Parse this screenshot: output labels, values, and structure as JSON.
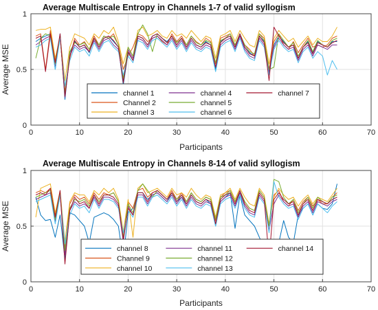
{
  "chart_data": [
    {
      "type": "line",
      "title": "Average Multiscale Entropy in Channels 1-7 of valid  syllogism",
      "xlabel": "Participants",
      "ylabel": "Average MSE",
      "xlim": [
        0,
        70
      ],
      "ylim": [
        0,
        1
      ],
      "xticks": [
        "0",
        "10",
        "20",
        "30",
        "40",
        "50",
        "60",
        "70"
      ],
      "yticks": [
        "0",
        "0.5",
        "1"
      ],
      "grid": true,
      "legend_position": "inside-bottom-center",
      "series": [
        {
          "name": "channel 1",
          "color": "#0072BD",
          "values": [
            0.75,
            0.78,
            0.8,
            0.82,
            0.5,
            0.82,
            0.23,
            0.65,
            0.75,
            0.7,
            0.72,
            0.65,
            0.78,
            0.7,
            0.78,
            0.8,
            0.75,
            0.7,
            0.36,
            0.65,
            0.58,
            0.8,
            0.78,
            0.72,
            0.8,
            0.82,
            0.78,
            0.75,
            0.8,
            0.72,
            0.78,
            0.7,
            0.78,
            0.72,
            0.7,
            0.75,
            0.72,
            0.5,
            0.75,
            0.78,
            0.8,
            0.7,
            0.82,
            0.7,
            0.65,
            0.62,
            0.8,
            0.75,
            0.45,
            0.72,
            0.8,
            0.75,
            0.7,
            0.72,
            0.6,
            0.7,
            0.75,
            0.65,
            0.75,
            0.72,
            0.7,
            0.75,
            0.75
          ]
        },
        {
          "name": "Channel 2",
          "color": "#D95319",
          "values": [
            0.8,
            0.82,
            0.5,
            0.85,
            0.58,
            0.78,
            0.3,
            0.6,
            0.78,
            0.72,
            0.75,
            0.68,
            0.8,
            0.72,
            0.8,
            0.78,
            0.82,
            0.72,
            0.5,
            0.62,
            0.7,
            0.82,
            0.8,
            0.75,
            0.78,
            0.8,
            0.75,
            0.72,
            0.82,
            0.75,
            0.8,
            0.72,
            0.8,
            0.75,
            0.72,
            0.78,
            0.75,
            0.55,
            0.78,
            0.8,
            0.82,
            0.72,
            0.8,
            0.72,
            0.68,
            0.62,
            0.82,
            0.78,
            0.5,
            0.75,
            0.82,
            0.72,
            0.68,
            0.75,
            0.65,
            0.72,
            0.78,
            0.7,
            0.72,
            0.7,
            0.72,
            0.78,
            0.8
          ]
        },
        {
          "name": "channel 3",
          "color": "#EDB120",
          "values": [
            0.85,
            0.86,
            0.86,
            0.88,
            0.6,
            0.8,
            0.4,
            0.7,
            0.82,
            0.8,
            0.78,
            0.72,
            0.82,
            0.78,
            0.85,
            0.82,
            0.88,
            0.75,
            0.55,
            0.7,
            0.62,
            0.85,
            0.88,
            0.8,
            0.82,
            0.85,
            0.8,
            0.78,
            0.85,
            0.8,
            0.82,
            0.78,
            0.85,
            0.8,
            0.75,
            0.8,
            0.78,
            0.6,
            0.8,
            0.82,
            0.85,
            0.75,
            0.85,
            0.78,
            0.72,
            0.7,
            0.85,
            0.8,
            0.55,
            0.78,
            0.85,
            0.8,
            0.75,
            0.78,
            0.7,
            0.75,
            0.8,
            0.72,
            0.78,
            0.75,
            0.75,
            0.8,
            0.88
          ]
        },
        {
          "name": "channel 4",
          "color": "#7E2F8E",
          "values": [
            0.72,
            0.75,
            0.78,
            0.8,
            0.52,
            0.8,
            0.25,
            0.62,
            0.72,
            0.68,
            0.7,
            0.66,
            0.76,
            0.68,
            0.76,
            0.78,
            0.72,
            0.68,
            0.4,
            0.68,
            0.6,
            0.78,
            0.76,
            0.7,
            0.78,
            0.8,
            0.76,
            0.72,
            0.78,
            0.7,
            0.76,
            0.68,
            0.76,
            0.7,
            0.68,
            0.72,
            0.7,
            0.52,
            0.72,
            0.76,
            0.78,
            0.68,
            0.8,
            0.68,
            0.62,
            0.6,
            0.78,
            0.72,
            0.48,
            0.7,
            0.78,
            0.72,
            0.68,
            0.7,
            0.58,
            0.68,
            0.72,
            0.62,
            0.72,
            0.7,
            0.68,
            0.72,
            0.72
          ]
        },
        {
          "name": "channel 5",
          "color": "#77AC30",
          "values": [
            0.6,
            0.78,
            0.82,
            0.8,
            0.55,
            0.8,
            0.28,
            0.66,
            0.74,
            0.72,
            0.74,
            0.68,
            0.78,
            0.72,
            0.8,
            0.78,
            0.8,
            0.72,
            0.42,
            0.7,
            0.62,
            0.82,
            0.9,
            0.82,
            0.66,
            0.82,
            0.78,
            0.74,
            0.8,
            0.74,
            0.78,
            0.72,
            0.8,
            0.74,
            0.72,
            0.76,
            0.74,
            0.56,
            0.76,
            0.78,
            0.82,
            0.72,
            0.82,
            0.72,
            0.66,
            0.64,
            0.82,
            0.76,
            0.5,
            0.52,
            0.82,
            0.76,
            0.7,
            0.74,
            0.62,
            0.7,
            0.76,
            0.66,
            0.76,
            0.72,
            0.7,
            0.76,
            0.78
          ]
        },
        {
          "name": "channel 6",
          "color": "#4DBEEE",
          "values": [
            0.7,
            0.72,
            0.76,
            0.78,
            0.5,
            0.78,
            0.35,
            0.58,
            0.7,
            0.66,
            0.68,
            0.62,
            0.74,
            0.66,
            0.74,
            0.76,
            0.7,
            0.66,
            0.45,
            0.62,
            0.56,
            0.76,
            0.74,
            0.68,
            0.76,
            0.78,
            0.74,
            0.7,
            0.76,
            0.68,
            0.74,
            0.66,
            0.74,
            0.68,
            0.66,
            0.7,
            0.68,
            0.48,
            0.7,
            0.74,
            0.76,
            0.66,
            0.78,
            0.66,
            0.6,
            0.58,
            0.76,
            0.7,
            0.45,
            0.68,
            0.76,
            0.7,
            0.66,
            0.68,
            0.56,
            0.66,
            0.7,
            0.6,
            0.66,
            0.62,
            0.45,
            0.58,
            0.5
          ]
        },
        {
          "name": "channel 7",
          "color": "#A2142F",
          "values": [
            0.78,
            0.8,
            0.48,
            0.82,
            0.56,
            0.82,
            0.26,
            0.62,
            0.76,
            0.7,
            0.72,
            0.66,
            0.78,
            0.7,
            0.78,
            0.8,
            0.76,
            0.7,
            0.38,
            0.66,
            0.58,
            0.8,
            0.78,
            0.72,
            0.8,
            0.82,
            0.78,
            0.74,
            0.8,
            0.72,
            0.78,
            0.7,
            0.78,
            0.72,
            0.7,
            0.74,
            0.72,
            0.52,
            0.74,
            0.78,
            0.8,
            0.7,
            0.82,
            0.7,
            0.64,
            0.62,
            0.8,
            0.74,
            0.4,
            0.88,
            0.8,
            0.74,
            0.7,
            0.72,
            0.6,
            0.7,
            0.74,
            0.64,
            0.74,
            0.72,
            0.7,
            0.74,
            0.76
          ]
        }
      ]
    },
    {
      "type": "line",
      "title": "Average Multiscale Entropy in Channels 8-14 of valid  syllogism",
      "xlabel": "Participants",
      "ylabel": "Average MSE",
      "xlim": [
        0,
        70
      ],
      "ylim": [
        0,
        1
      ],
      "xticks": [
        "0",
        "10",
        "20",
        "30",
        "40",
        "50",
        "60",
        "70"
      ],
      "yticks": [
        "0",
        "0.5",
        "1"
      ],
      "grid": true,
      "legend_position": "inside-bottom-center",
      "series": [
        {
          "name": "channel 8",
          "color": "#0072BD",
          "values": [
            0.76,
            0.6,
            0.55,
            0.56,
            0.4,
            0.6,
            0.2,
            0.62,
            0.6,
            0.55,
            0.5,
            0.35,
            0.58,
            0.6,
            0.62,
            0.6,
            0.56,
            0.5,
            0.2,
            0.62,
            0.66,
            0.8,
            0.8,
            0.74,
            0.78,
            0.8,
            0.76,
            0.72,
            0.8,
            0.72,
            0.76,
            0.7,
            0.78,
            0.72,
            0.7,
            0.74,
            0.7,
            0.5,
            0.72,
            0.76,
            0.8,
            0.48,
            0.78,
            0.6,
            0.55,
            0.5,
            0.4,
            0.3,
            0.25,
            0.3,
            0.35,
            0.55,
            0.4,
            0.35,
            0.6,
            0.66,
            0.7,
            0.6,
            0.7,
            0.66,
            0.65,
            0.7,
            0.88
          ]
        },
        {
          "name": "Channel 9",
          "color": "#D95319",
          "values": [
            0.8,
            0.82,
            0.8,
            0.84,
            0.6,
            0.8,
            0.3,
            0.7,
            0.78,
            0.74,
            0.76,
            0.7,
            0.8,
            0.74,
            0.8,
            0.78,
            0.8,
            0.72,
            0.4,
            0.72,
            0.66,
            0.82,
            0.84,
            0.76,
            0.8,
            0.82,
            0.78,
            0.74,
            0.82,
            0.74,
            0.8,
            0.72,
            0.8,
            0.74,
            0.72,
            0.76,
            0.74,
            0.55,
            0.76,
            0.8,
            0.82,
            0.72,
            0.8,
            0.72,
            0.66,
            0.64,
            0.82,
            0.76,
            0.5,
            0.78,
            0.82,
            0.72,
            0.68,
            0.74,
            0.64,
            0.72,
            0.76,
            0.68,
            0.74,
            0.7,
            0.7,
            0.76,
            0.8
          ]
        },
        {
          "name": "channel 10",
          "color": "#EDB120",
          "values": [
            0.58,
            0.84,
            0.86,
            0.88,
            0.62,
            0.82,
            0.36,
            0.72,
            0.8,
            0.78,
            0.78,
            0.72,
            0.82,
            0.78,
            0.84,
            0.8,
            0.84,
            0.74,
            0.45,
            0.74,
            0.4,
            0.84,
            0.88,
            0.8,
            0.82,
            0.84,
            0.8,
            0.76,
            0.84,
            0.78,
            0.8,
            0.76,
            0.84,
            0.78,
            0.74,
            0.78,
            0.76,
            0.58,
            0.78,
            0.8,
            0.84,
            0.74,
            0.84,
            0.76,
            0.7,
            0.68,
            0.84,
            0.78,
            0.52,
            0.76,
            0.84,
            0.78,
            0.74,
            0.76,
            0.68,
            0.74,
            0.78,
            0.7,
            0.76,
            0.74,
            0.72,
            0.78,
            0.84
          ]
        },
        {
          "name": "channel 11",
          "color": "#7E2F8E",
          "values": [
            0.74,
            0.76,
            0.78,
            0.8,
            0.54,
            0.78,
            0.24,
            0.64,
            0.72,
            0.68,
            0.7,
            0.66,
            0.76,
            0.68,
            0.76,
            0.76,
            0.74,
            0.68,
            0.36,
            0.68,
            0.6,
            0.78,
            0.78,
            0.7,
            0.78,
            0.8,
            0.76,
            0.72,
            0.78,
            0.7,
            0.76,
            0.68,
            0.76,
            0.7,
            0.68,
            0.72,
            0.7,
            0.52,
            0.72,
            0.76,
            0.78,
            0.68,
            0.8,
            0.68,
            0.62,
            0.6,
            0.78,
            0.72,
            0.46,
            0.7,
            0.78,
            0.72,
            0.68,
            0.7,
            0.58,
            0.68,
            0.72,
            0.62,
            0.72,
            0.7,
            0.68,
            0.72,
            0.74
          ]
        },
        {
          "name": "channel 12",
          "color": "#77AC30",
          "values": [
            0.76,
            0.78,
            0.8,
            0.82,
            0.56,
            0.8,
            0.28,
            0.66,
            0.74,
            0.72,
            0.74,
            0.68,
            0.78,
            0.72,
            0.78,
            0.78,
            0.8,
            0.72,
            0.4,
            0.7,
            0.62,
            0.82,
            0.88,
            0.82,
            0.76,
            0.82,
            0.78,
            0.74,
            0.8,
            0.74,
            0.78,
            0.72,
            0.8,
            0.74,
            0.72,
            0.76,
            0.74,
            0.56,
            0.76,
            0.78,
            0.82,
            0.72,
            0.82,
            0.72,
            0.66,
            0.64,
            0.82,
            0.76,
            0.5,
            0.92,
            0.9,
            0.76,
            0.7,
            0.74,
            0.62,
            0.7,
            0.76,
            0.66,
            0.76,
            0.72,
            0.7,
            0.76,
            0.78
          ]
        },
        {
          "name": "channel 13",
          "color": "#4DBEEE",
          "values": [
            0.72,
            0.74,
            0.76,
            0.78,
            0.52,
            0.78,
            0.34,
            0.6,
            0.7,
            0.66,
            0.68,
            0.62,
            0.74,
            0.66,
            0.74,
            0.74,
            0.72,
            0.66,
            0.44,
            0.64,
            0.58,
            0.76,
            0.76,
            0.68,
            0.76,
            0.78,
            0.74,
            0.7,
            0.76,
            0.68,
            0.74,
            0.66,
            0.74,
            0.68,
            0.66,
            0.7,
            0.68,
            0.5,
            0.7,
            0.74,
            0.76,
            0.66,
            0.78,
            0.66,
            0.6,
            0.58,
            0.76,
            0.7,
            0.44,
            0.9,
            0.76,
            0.7,
            0.66,
            0.68,
            0.56,
            0.66,
            0.7,
            0.6,
            0.7,
            0.66,
            0.62,
            0.68,
            0.72
          ]
        },
        {
          "name": "channel 14",
          "color": "#A2142F",
          "values": [
            0.78,
            0.8,
            0.78,
            0.84,
            0.58,
            0.82,
            0.16,
            0.64,
            0.76,
            0.7,
            0.72,
            0.66,
            0.78,
            0.7,
            0.78,
            0.78,
            0.76,
            0.7,
            0.38,
            0.66,
            0.6,
            0.8,
            0.8,
            0.72,
            0.8,
            0.82,
            0.78,
            0.74,
            0.8,
            0.72,
            0.78,
            0.7,
            0.78,
            0.72,
            0.7,
            0.74,
            0.72,
            0.52,
            0.74,
            0.78,
            0.8,
            0.7,
            0.82,
            0.7,
            0.64,
            0.62,
            0.8,
            0.74,
            0.2,
            0.74,
            0.8,
            0.74,
            0.7,
            0.72,
            0.6,
            0.7,
            0.74,
            0.64,
            0.74,
            0.72,
            0.7,
            0.74,
            0.76
          ]
        }
      ]
    }
  ]
}
